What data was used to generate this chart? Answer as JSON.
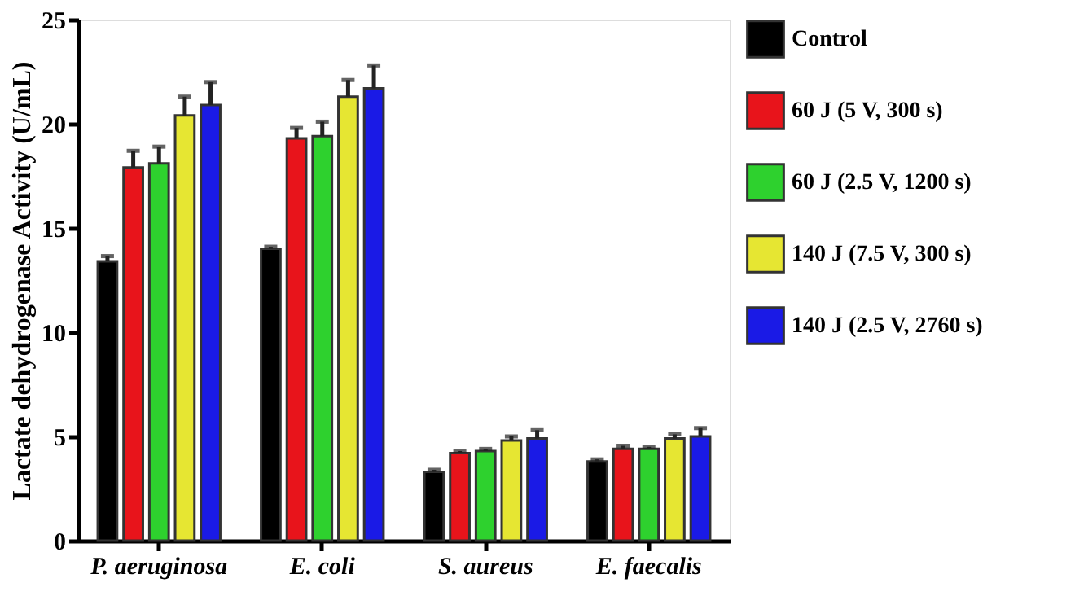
{
  "chart_data": {
    "type": "bar",
    "ylabel": "Lactate dehydrogenase Activity (U/mL)",
    "categories": [
      "P. aeruginosa",
      "E. coli",
      "S. aureus",
      "E. faecalis"
    ],
    "ylim": [
      0,
      25
    ],
    "yticks": [
      0,
      5,
      10,
      15,
      20,
      25
    ],
    "grid": false,
    "legend": "right",
    "series": [
      {
        "name": "Control",
        "color": "#000000",
        "values": [
          13.4,
          14.0,
          3.3,
          3.8
        ],
        "errors": [
          [
            13.4,
            13.65
          ],
          [
            14.0,
            14.1
          ],
          [
            3.3,
            3.4
          ],
          [
            3.8,
            3.9
          ]
        ]
      },
      {
        "name": "60 J (5 V, 300 s)",
        "color": "#e8141b",
        "values": [
          17.9,
          19.3,
          4.2,
          4.4
        ],
        "errors": [
          [
            17.9,
            18.7
          ],
          [
            19.3,
            19.8
          ],
          [
            4.2,
            4.3
          ],
          [
            4.4,
            4.55
          ]
        ]
      },
      {
        "name": "60 J (2.5 V, 1200 s)",
        "color": "#2ed12e",
        "values": [
          18.1,
          19.4,
          4.3,
          4.4
        ],
        "errors": [
          [
            18.1,
            18.9
          ],
          [
            19.4,
            20.1
          ],
          [
            4.3,
            4.4
          ],
          [
            4.4,
            4.5
          ]
        ]
      },
      {
        "name": "140 J (7.5 V, 300 s)",
        "color": "#e6e632",
        "values": [
          20.4,
          21.3,
          4.8,
          4.9
        ],
        "errors": [
          [
            20.4,
            21.3
          ],
          [
            21.3,
            22.1
          ],
          [
            4.8,
            5.0
          ],
          [
            4.9,
            5.1
          ]
        ]
      },
      {
        "name": "140 J (2.5 V, 2760 s)",
        "color": "#1a1ae6",
        "values": [
          20.9,
          21.7,
          4.9,
          5.0
        ],
        "errors": [
          [
            20.9,
            22.0
          ],
          [
            21.7,
            22.8
          ],
          [
            4.9,
            5.3
          ],
          [
            5.0,
            5.4
          ]
        ]
      }
    ]
  }
}
